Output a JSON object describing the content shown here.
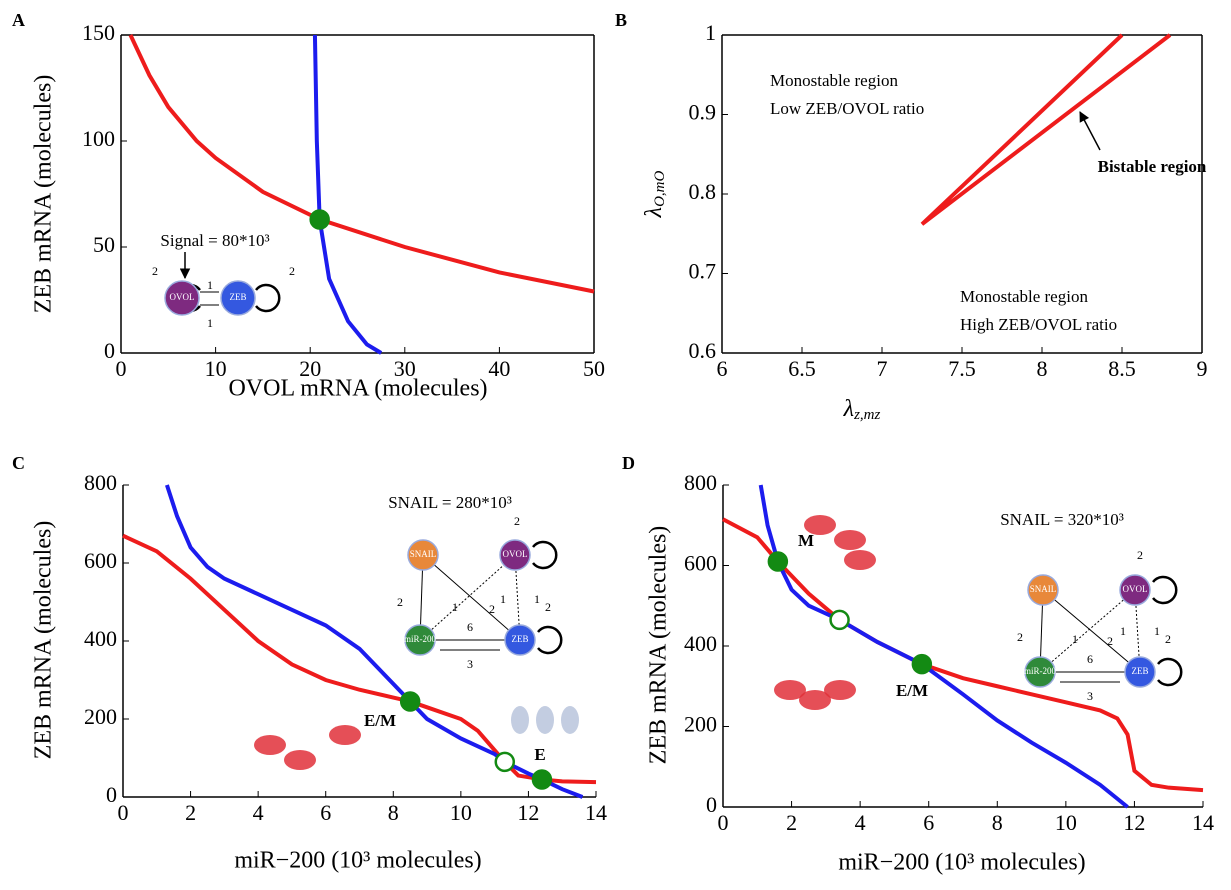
{
  "chart_data": [
    {
      "type": "line",
      "panel": "A",
      "xlabel": "OVOL mRNA (molecules)",
      "ylabel": "ZEB mRNA (molecules)",
      "xlim": [
        0,
        50
      ],
      "ylim": [
        0,
        150
      ],
      "xticks": [
        0,
        10,
        20,
        30,
        40,
        50
      ],
      "yticks": [
        0,
        50,
        100,
        150
      ],
      "box": true,
      "series": [
        {
          "color": "#ee1c1c",
          "x": [
            1,
            3,
            5,
            8,
            10,
            15,
            21,
            30,
            40,
            50
          ],
          "values": [
            150,
            131,
            116,
            100,
            92,
            76,
            63,
            50,
            38,
            29
          ]
        },
        {
          "color": "#1c1cee",
          "x": [
            20.5,
            20.7,
            21,
            22,
            24,
            26,
            27.5
          ],
          "values": [
            150,
            100,
            63,
            35,
            15,
            4,
            0
          ]
        }
      ],
      "markers": {
        "color": "#138a13",
        "x": [
          21
        ],
        "values": [
          63
        ],
        "filled": [
          true
        ]
      },
      "annotations": [
        "Signal = 80*10³"
      ],
      "inset": {
        "nodes": [
          {
            "label": "OVOL",
            "color": "#7e2a80"
          },
          {
            "label": "ZEB",
            "color": "#3458e0"
          }
        ],
        "edge_labels": [
          "2",
          "1",
          "1",
          "2"
        ]
      }
    },
    {
      "type": "line",
      "panel": "B",
      "xlabel": "λz,mz",
      "ylabel": "λO,mO",
      "xlim": [
        6,
        9
      ],
      "ylim": [
        0.6,
        1
      ],
      "xticks": [
        6,
        6.5,
        7,
        7.5,
        8,
        8.5,
        9
      ],
      "yticks": [
        0.6,
        0.7,
        0.8,
        0.9,
        1
      ],
      "box": true,
      "series": [
        {
          "color": "#ee1c1c",
          "x": [
            8.5,
            7.25,
            8.8
          ],
          "values": [
            1,
            0.762,
            1
          ]
        }
      ],
      "annotations": [
        "Monostable region",
        "Low ZEB/OVOL ratio",
        "Bistable region",
        "Monostable region",
        "High ZEB/OVOL ratio"
      ]
    },
    {
      "type": "line",
      "panel": "C",
      "xlabel": "miR−200 (10³ molecules)",
      "ylabel": "ZEB mRNA (molecules)",
      "xlim": [
        0,
        14
      ],
      "ylim": [
        0,
        800
      ],
      "xticks": [
        0,
        2,
        4,
        6,
        8,
        10,
        12,
        14
      ],
      "yticks": [
        0,
        200,
        400,
        600,
        800
      ],
      "box": false,
      "series": [
        {
          "color": "#ee1c1c",
          "x": [
            0,
            1,
            2,
            3,
            4,
            5,
            6,
            7,
            8,
            8.5,
            9,
            10,
            10.5,
            11,
            11.3,
            11.7,
            12.4,
            13,
            14
          ],
          "values": [
            670,
            630,
            560,
            480,
            400,
            340,
            300,
            275,
            255,
            245,
            230,
            200,
            170,
            120,
            90,
            55,
            45,
            40,
            38
          ]
        },
        {
          "color": "#1c1cee",
          "x": [
            1.3,
            1.6,
            2,
            2.5,
            3,
            4,
            5,
            6,
            7,
            8,
            8.5,
            9,
            10,
            11,
            11.3,
            12,
            12.4,
            13,
            13.6
          ],
          "values": [
            800,
            720,
            640,
            590,
            560,
            520,
            480,
            440,
            380,
            290,
            245,
            200,
            150,
            110,
            90,
            60,
            45,
            20,
            0
          ]
        }
      ],
      "markers": {
        "color": "#138a13",
        "x": [
          8.5,
          11.3,
          12.4
        ],
        "values": [
          245,
          90,
          45
        ],
        "filled": [
          true,
          false,
          true
        ]
      },
      "annotations": [
        "SNAIL = 280*10³",
        "E/M",
        "E"
      ],
      "inset": {
        "nodes": [
          {
            "label": "SNAIL",
            "color": "#e8883a"
          },
          {
            "label": "OVOL",
            "color": "#7e2a80"
          },
          {
            "label": "miR-200",
            "color": "#2f8a3a"
          },
          {
            "label": "ZEB",
            "color": "#3458e0"
          }
        ],
        "edge_labels": [
          "2",
          "2",
          "1",
          "2",
          "1",
          "1",
          "2",
          "6",
          "3"
        ]
      }
    },
    {
      "type": "line",
      "panel": "D",
      "xlabel": "miR−200 (10³ molecules)",
      "ylabel": "ZEB mRNA (molecules)",
      "xlim": [
        0,
        14
      ],
      "ylim": [
        0,
        800
      ],
      "xticks": [
        0,
        2,
        4,
        6,
        8,
        10,
        12,
        14
      ],
      "yticks": [
        0,
        200,
        400,
        600,
        800
      ],
      "box": false,
      "series": [
        {
          "color": "#ee1c1c",
          "x": [
            0,
            1,
            1.6,
            2.5,
            3.4,
            4.5,
            5.8,
            7,
            8,
            9,
            10,
            11,
            11.5,
            11.8,
            12,
            12.5,
            13,
            14
          ],
          "values": [
            715,
            670,
            610,
            530,
            465,
            410,
            355,
            320,
            300,
            280,
            260,
            240,
            220,
            180,
            90,
            55,
            48,
            42
          ]
        },
        {
          "color": "#1c1cee",
          "x": [
            1.1,
            1.3,
            1.6,
            2,
            2.5,
            3.4,
            4.5,
            5.8,
            7,
            8,
            9,
            10,
            11,
            11.8
          ],
          "values": [
            800,
            700,
            610,
            540,
            500,
            465,
            410,
            355,
            280,
            215,
            160,
            110,
            55,
            0
          ]
        }
      ],
      "markers": {
        "color": "#138a13",
        "x": [
          1.6,
          3.4,
          5.8
        ],
        "values": [
          610,
          465,
          355
        ],
        "filled": [
          true,
          false,
          true
        ]
      },
      "annotations": [
        "SNAIL = 320*10³",
        "M",
        "E/M"
      ],
      "inset": {
        "nodes": [
          {
            "label": "SNAIL",
            "color": "#e8883a"
          },
          {
            "label": "OVOL",
            "color": "#7e2a80"
          },
          {
            "label": "miR-200",
            "color": "#2f8a3a"
          },
          {
            "label": "ZEB",
            "color": "#3458e0"
          }
        ],
        "edge_labels": [
          "2",
          "2",
          "1",
          "2",
          "1",
          "1",
          "2",
          "6",
          "3"
        ]
      }
    }
  ]
}
